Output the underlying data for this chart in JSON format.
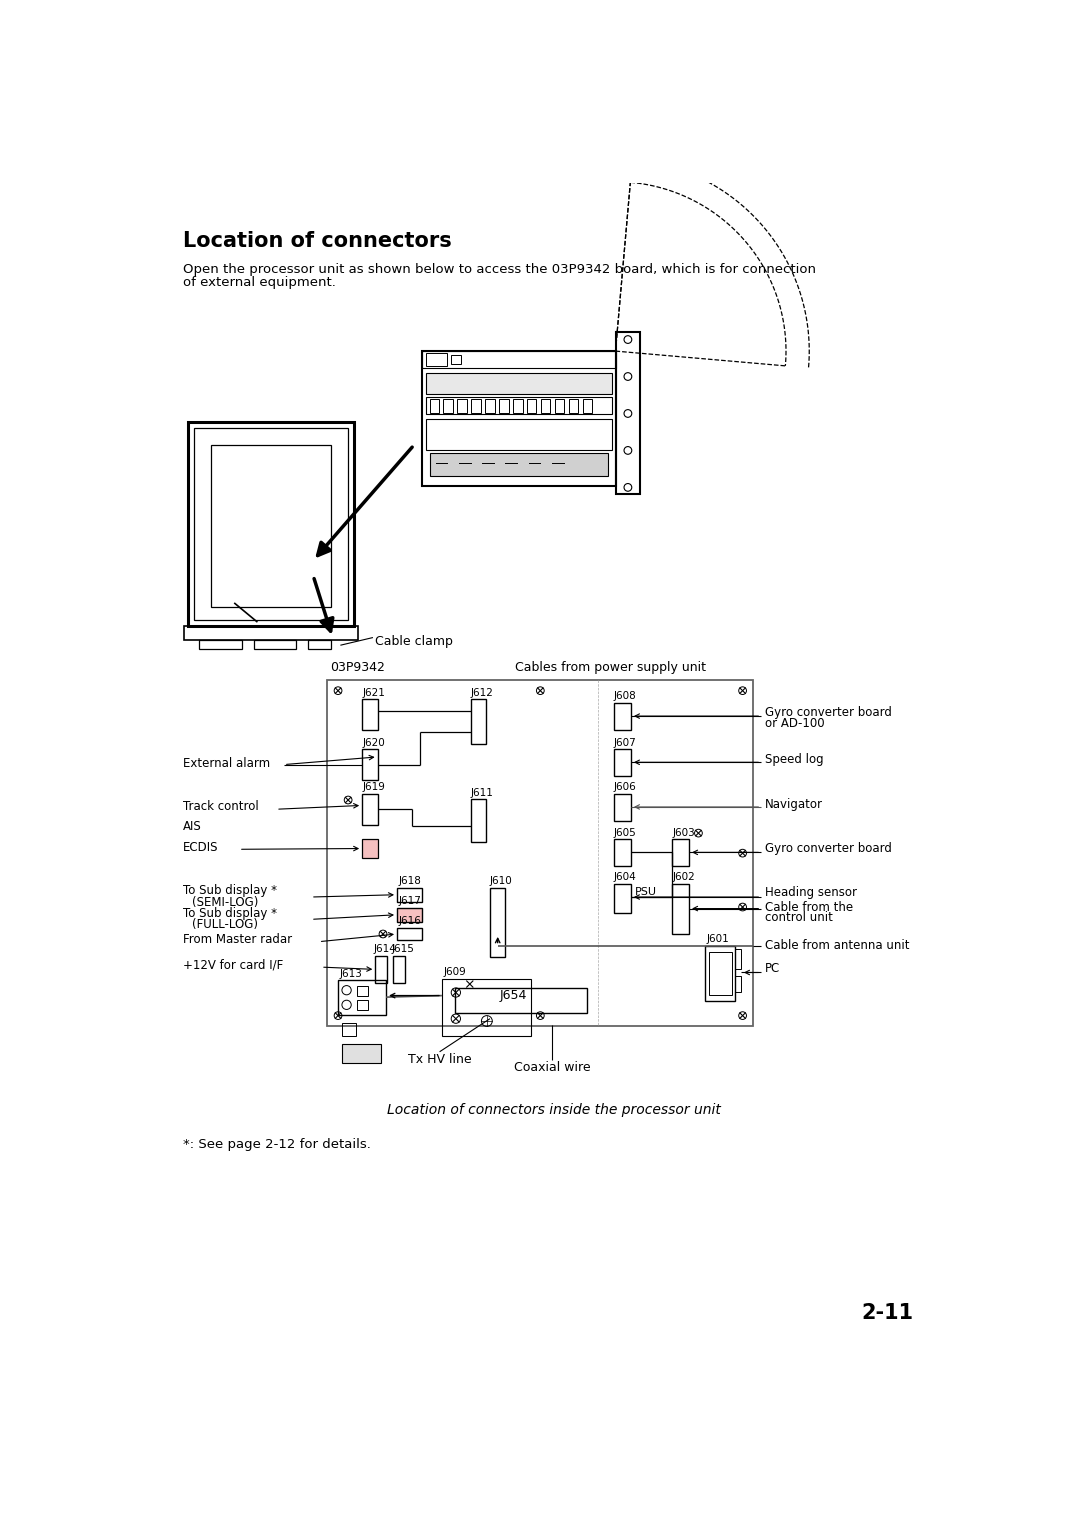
{
  "title": "Location of connectors",
  "body_text1": "Open the processor unit as shown below to access the 03P9342 board, which is for connection",
  "body_text2": "of external equipment.",
  "caption": "Location of connectors inside the processor unit",
  "footnote": "*: See page 2-12 for details.",
  "page_number": "2-11",
  "bg": "#ffffff"
}
